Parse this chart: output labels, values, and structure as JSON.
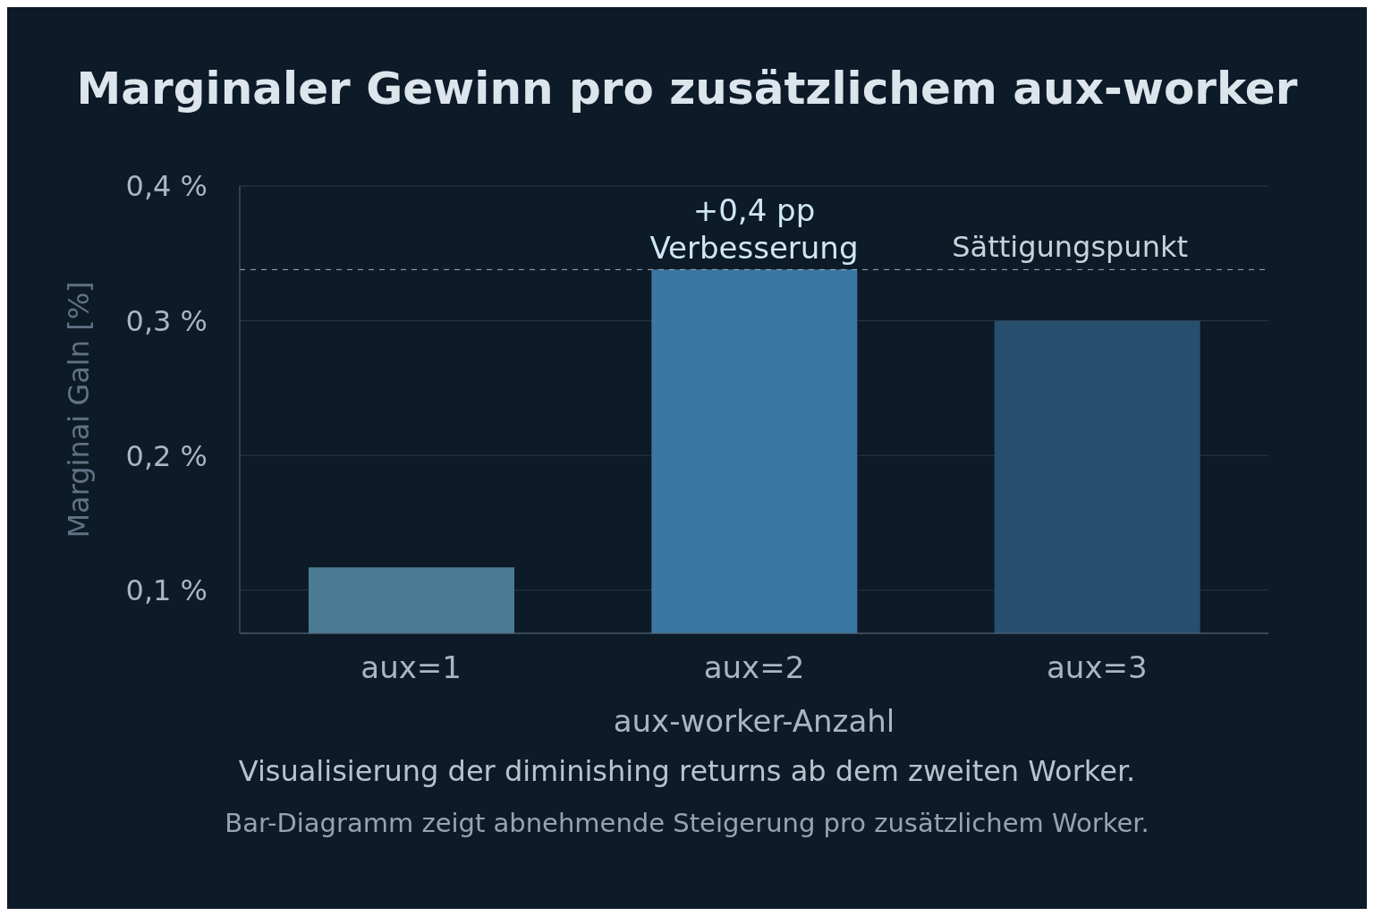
{
  "chart_data": {
    "type": "bar",
    "title": "Marginaler Gewinn pro zusätzlichem aux-worker",
    "xlabel": "aux-worker-Anzahl",
    "ylabel": "Marginai Galn [%]",
    "categories": [
      "aux=1",
      "aux=2",
      "aux=3"
    ],
    "values": [
      0.117,
      0.338,
      0.3
    ],
    "colors": [
      "#4a7b93",
      "#3a77a2",
      "#274e6d"
    ],
    "ylim": [
      0.068,
      0.4
    ],
    "yticks": [
      {
        "value": 0.1,
        "label": "0,1 %"
      },
      {
        "value": 0.2,
        "label": "0,2 %"
      },
      {
        "value": 0.3,
        "label": "0,3 %"
      },
      {
        "value": 0.4,
        "label": "0,4 %"
      }
    ],
    "grid": "y",
    "ref_lines": [
      {
        "axis": "y",
        "value": 0.338,
        "label": "Sättigungspunkt",
        "line_style": "dashed",
        "color": "#9fb3c4"
      }
    ],
    "annotations": [
      {
        "text": "+0,4 pp\nVerbesserung",
        "x": "aux=2",
        "y": 0.338
      },
      "Visualisierung der diminishing returns ab dem zweiten Worker.",
      "Bar-Diagramm zeigt abnehmende Steigerung pro zusätzlichem Worker."
    ]
  }
}
